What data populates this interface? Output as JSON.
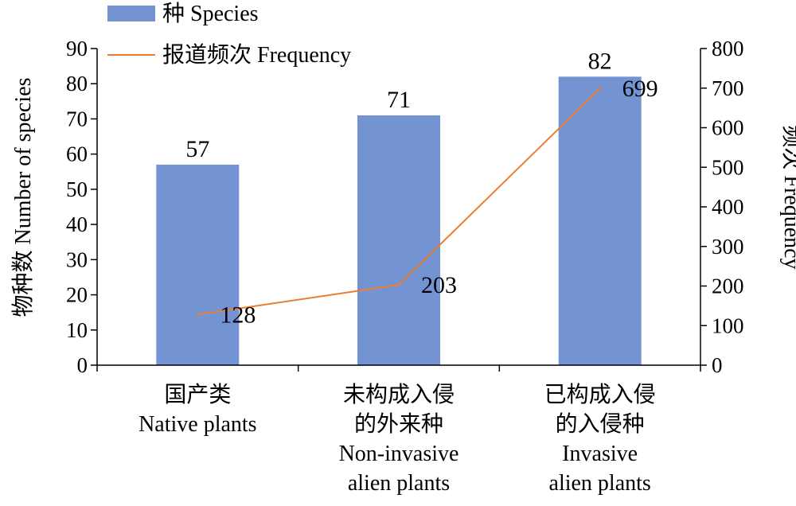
{
  "chart_data": {
    "type": "bar",
    "categories": [
      [
        "国产类",
        "Native plants"
      ],
      [
        "未构成入侵",
        "的外来种",
        "Non-invasive",
        "alien plants"
      ],
      [
        "已构成入侵",
        "的入侵种",
        "Invasive",
        "alien plants"
      ]
    ],
    "series": [
      {
        "name": "种 Species",
        "type": "bar",
        "axis": "left",
        "values": [
          57,
          71,
          82
        ],
        "color": "#7393D2"
      },
      {
        "name": "报道频次 Frequency",
        "type": "line",
        "axis": "right",
        "values": [
          128,
          203,
          699
        ],
        "color": "#ED7D31"
      }
    ],
    "ylabel_left": "物种数 Number of species",
    "ylabel_right": "频次 Frequency",
    "ylim_left": [
      0,
      90
    ],
    "ylim_right": [
      0,
      800
    ],
    "yticks_left": [
      0,
      10,
      20,
      30,
      40,
      50,
      60,
      70,
      80,
      90
    ],
    "yticks_right": [
      0,
      100,
      200,
      300,
      400,
      500,
      600,
      700,
      800
    ],
    "grid": false,
    "legend_position": "top-left"
  }
}
